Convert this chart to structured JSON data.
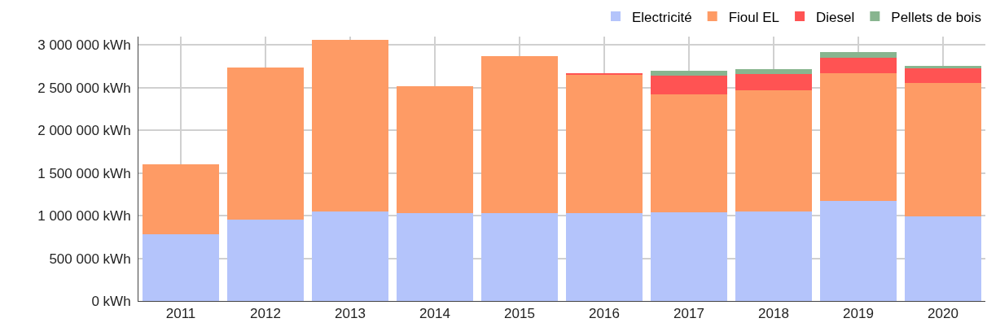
{
  "chart_data": {
    "type": "bar",
    "stacked": true,
    "categories": [
      "2011",
      "2012",
      "2013",
      "2014",
      "2015",
      "2016",
      "2017",
      "2018",
      "2019",
      "2020"
    ],
    "series": [
      {
        "name": "Electricité",
        "color": "#b4c4fb",
        "values": [
          780000,
          950000,
          1050000,
          1030000,
          1030000,
          1030000,
          1040000,
          1050000,
          1170000,
          990000
        ]
      },
      {
        "name": "Fioul EL",
        "color": "#fe9b65",
        "values": [
          820000,
          1790000,
          2010000,
          1490000,
          1840000,
          1630000,
          1380000,
          1420000,
          1500000,
          1570000
        ]
      },
      {
        "name": "Diesel",
        "color": "#ff5353",
        "values": [
          0,
          0,
          0,
          0,
          0,
          10000,
          220000,
          190000,
          180000,
          170000
        ]
      },
      {
        "name": "Pellets de bois",
        "color": "#88b58f",
        "values": [
          0,
          0,
          0,
          0,
          0,
          0,
          60000,
          60000,
          70000,
          30000
        ]
      }
    ],
    "ylim": [
      0,
      3100000
    ],
    "yticks": [
      {
        "value": 0,
        "label": "0 kWh"
      },
      {
        "value": 500000,
        "label": "500 000 kWh"
      },
      {
        "value": 1000000,
        "label": "1 000 000 kWh"
      },
      {
        "value": 1500000,
        "label": "1 500 000 kWh"
      },
      {
        "value": 2000000,
        "label": "2 000 000 kWh"
      },
      {
        "value": 2500000,
        "label": "2 500 000 kWh"
      },
      {
        "value": 3000000,
        "label": "3 000 000 kWh"
      }
    ],
    "grid": true,
    "legend": "top right"
  }
}
